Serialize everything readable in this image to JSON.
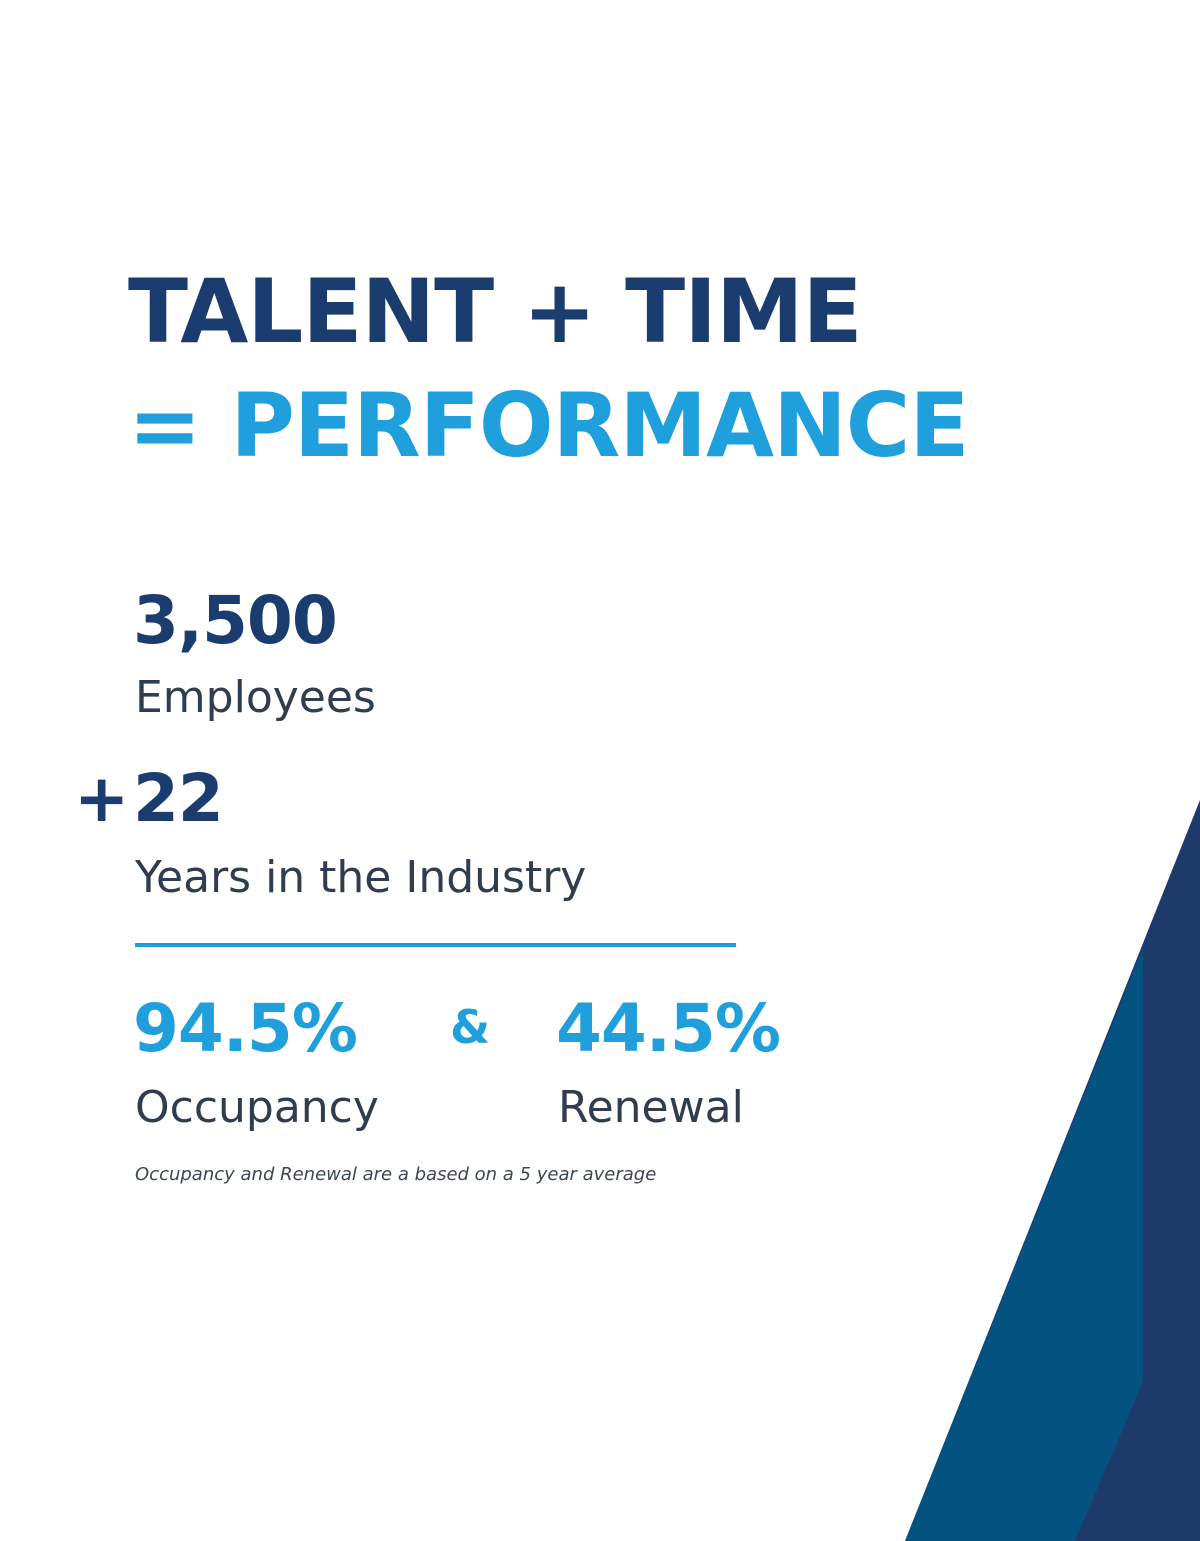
{
  "headline": {
    "line1": "TALENT + TIME",
    "line2": "= PERFORMANCE"
  },
  "stats": {
    "employees": {
      "number": "3,500",
      "label": "Employees"
    },
    "years": {
      "prefix": "+",
      "number": "22",
      "label": "Years in the Industry"
    },
    "occupancy": {
      "number": "94.5%",
      "label": "Occupancy"
    },
    "joiner": "&",
    "renewal": {
      "number": "44.5%",
      "label": "Renewal"
    }
  },
  "footnote": "Occupancy and Renewal are a based on a 5 year average"
}
